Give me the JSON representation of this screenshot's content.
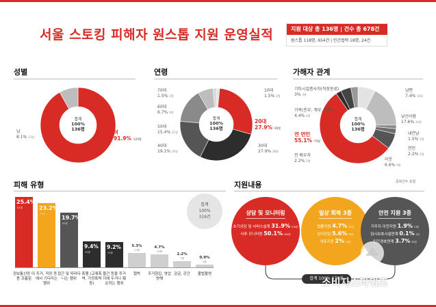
{
  "title": "서울 스토킹 피해자 원스톱 지원 운영실적",
  "badge": {
    "line1": "지원 대상 총 136명 | 건수 총 678건",
    "line2": "원스톱 118명, 654건 | 민간협력 18명, 24건"
  },
  "sections": {
    "gender": "성별",
    "age": "연령",
    "relation": "가해자 관계",
    "damage": "피해 유형",
    "support": "지원내용"
  },
  "colors": {
    "red": "#d92b26",
    "orange": "#f2a51d",
    "dark": "#2d2d2d",
    "darkgray": "#555555",
    "gray": "#8a8a8a",
    "lightgray": "#bdbdbd",
    "verylight": "#e3e3e3"
  },
  "chart_data": [
    {
      "type": "pie",
      "name": "gender",
      "center_lines": [
        "합계",
        "100%",
        "136명"
      ],
      "slices": [
        {
          "label": "여",
          "value": 91.9,
          "count": "125명",
          "color": "#d92b26"
        },
        {
          "label": "남",
          "value": 8.1,
          "count": "11명",
          "color": "#bdbdbd"
        }
      ]
    },
    {
      "type": "pie",
      "name": "age",
      "center_lines": [
        "합계",
        "100%",
        "136명"
      ],
      "slices": [
        {
          "label": "10대",
          "value": 1.5,
          "count": "2명",
          "color": "#e3e3e3"
        },
        {
          "label": "20대",
          "value": 27.9,
          "count": "38명",
          "color": "#d92b26"
        },
        {
          "label": "30대",
          "value": 27.9,
          "count": "38명",
          "color": "#2d2d2d"
        },
        {
          "label": "40대",
          "value": 19.1,
          "count": "26명",
          "color": "#555555"
        },
        {
          "label": "50대",
          "value": 15.4,
          "count": "21명",
          "color": "#8a8a8a"
        },
        {
          "label": "60대",
          "value": 6.7,
          "count": "9명",
          "color": "#bdbdbd"
        },
        {
          "label": "70대",
          "value": 1.5,
          "count": "2명",
          "color": "#d6d6d6"
        }
      ]
    },
    {
      "type": "pie",
      "name": "relation",
      "center_lines": [
        "합계",
        "100%",
        "136명"
      ],
      "slices": [
        {
          "label": "남편",
          "value": 7.4,
          "count": "10명",
          "color": "#e3e3e3"
        },
        {
          "label": "낯선사람",
          "value": 17.6,
          "count": "24명",
          "color": "#bdbdbd"
        },
        {
          "label": "내연남",
          "value": 1.5,
          "count": "2명",
          "color": "#8a8a8a"
        },
        {
          "label": "연인",
          "value": 2.2,
          "count": "3명",
          "color": "#6d6d6d"
        },
        {
          "label": "이웃",
          "value": 6.6,
          "count": "9명",
          "color": "#555555"
        },
        {
          "label": "전 연인",
          "value": 55.1,
          "count": "75명",
          "color": "#d92b26"
        },
        {
          "label": "전 배우자",
          "value": 2.2,
          "count": "3명",
          "color": "#2d2d2d"
        },
        {
          "label": "가족(친부, 계부, 자매)",
          "value": 4.4,
          "count": "6명",
          "color": "#444444"
        },
        {
          "label": "기타시설종사자(직장동료)",
          "value": 3.0,
          "count": "4명",
          "color": "#999999"
        }
      ]
    },
    {
      "type": "bar",
      "name": "damage",
      "categories": [
        "정보통신망 이용 괴롭힘",
        "주거, 직장 등에서 기다리는 행위",
        "접근 및 따라다니는 행위",
        "폭행 (교제폭력, 가정폭력 등)",
        "물건 등을 주거지에 두거나 훼손하는 행위",
        "협박",
        "주거침입, 영업방해",
        "감금, 강간",
        "불법촬영"
      ],
      "values": [
        25.4,
        23.2,
        19.7,
        9.4,
        9.2,
        5.3,
        4.7,
        2.2,
        0.9
      ],
      "counts": [
        "81명",
        "74명",
        "63명",
        "30명",
        "29명",
        "17명",
        "15명",
        "7명",
        "3명"
      ],
      "pct_labels": [
        "25.4%",
        "23.2%",
        "19.7%",
        "9.4%",
        "9.2%",
        "5.3%",
        "4.7%",
        "2.2%",
        "0.9%"
      ],
      "colors": [
        "#d92b26",
        "#f2a51d",
        "#555555",
        "#2d2d2d",
        "#2d2d2d",
        "#cfcfcf",
        "#cfcfcf",
        "#cfcfcf",
        "#cfcfcf"
      ],
      "total_lines": [
        "합계",
        "100%",
        "319건"
      ]
    }
  ],
  "support": {
    "note": "중복건수 포함",
    "circles": [
      {
        "title": "상담 및 모니터링",
        "color": "#d92b26",
        "rows": [
          {
            "label": "초기상담 및 서비스설계",
            "pct": "31.9%",
            "count": "216건"
          },
          {
            "label": "사후 모니터링",
            "pct": "50.1%",
            "count": "340건"
          }
        ]
      },
      {
        "title": "일상 회복 3종",
        "color": "#f2a51d",
        "rows": [
          {
            "label": "법률지원",
            "pct": "4.7%",
            "count": "32건"
          },
          {
            "label": "심리상담",
            "pct": "5.6%",
            "count": "38건"
          },
          {
            "label": "의료지원",
            "pct": "2%",
            "count": "14건"
          }
        ]
      },
      {
        "title": "안전 지원 3종",
        "color": "#555555",
        "rows": [
          {
            "label": "거주지 이전지원",
            "pct": "1.9%",
            "count": "13건"
          },
          {
            "label": "임시보호시설연계",
            "pct": "0.1%",
            "count": "1건"
          },
          {
            "label": "민간경호연계",
            "pct": "3.7%",
            "count": "25건"
          }
        ]
      }
    ],
    "sum_pill": "합계 100% 678건"
  },
  "watermark": "소비자스타워즈"
}
